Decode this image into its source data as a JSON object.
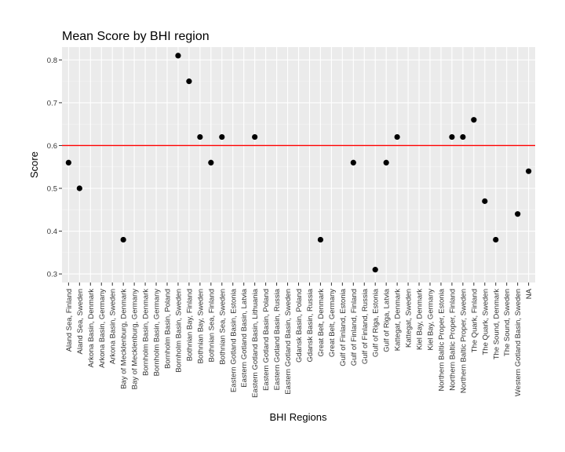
{
  "chart_data": {
    "type": "scatter",
    "title": "Mean Score by BHI region",
    "xlabel": "BHI Regions",
    "ylabel": "Score",
    "ylim": [
      0.28,
      0.83
    ],
    "yticks": [
      "0.3",
      "0.4",
      "0.5",
      "0.6",
      "0.7",
      "0.8"
    ],
    "grid": true,
    "reference_line": {
      "y": 0.6,
      "color": "#ff0000"
    },
    "categories": [
      "Aland Sea, Finland",
      "Aland Sea, Sweden",
      "Arkona Basin, Denmark",
      "Arkona Basin, Germany",
      "Arkona Basin, Sweden",
      "Bay of Mecklenburg, Denmark",
      "Bay of Mecklenburg, Germany",
      "Bornholm Basin, Denmark",
      "Bornholm Basin, Germany",
      "Bornholm Basin, Poland",
      "Bornholm Basin, Sweden",
      "Bothnian Bay, Finland",
      "Bothnian Bay, Sweden",
      "Bothnian Sea, Finland",
      "Bothnian Sea, Sweden",
      "Eastern Gotland Basin, Estonia",
      "Eastern Gotland Basin, Latvia",
      "Eastern Gotland Basin, Lithuania",
      "Eastern Gotland Basin, Poland",
      "Eastern Gotland Basin, Russia",
      "Eastern Gotland Basin, Sweden",
      "Gdansk Basin, Poland",
      "Gdansk Basin, Russia",
      "Great Belt, Denmark",
      "Great Belt, Germany",
      "Gulf of Finland, Estonia",
      "Gulf of Finland, Finland",
      "Gulf of Finland, Russia",
      "Gulf of Riga, Estonia",
      "Gulf of Riga, Latvia",
      "Kattegat, Denmark",
      "Kattegat, Sweden",
      "Kiel Bay, Denmark",
      "Kiel Bay, Germany",
      "Northern Baltic Proper, Estonia",
      "Northern Baltic Proper, Finland",
      "Northern Baltic Proper, Sweden",
      "The Quark, Finland",
      "The Quark, Sweden",
      "The Sound, Denmark",
      "The Sound, Sweden",
      "Western Gotland Basin, Sweden",
      "NA"
    ],
    "values": [
      0.56,
      0.5,
      null,
      null,
      null,
      0.38,
      null,
      null,
      null,
      null,
      0.81,
      0.75,
      0.62,
      0.56,
      0.62,
      null,
      null,
      0.62,
      null,
      null,
      null,
      null,
      null,
      0.38,
      null,
      null,
      0.56,
      null,
      0.31,
      0.56,
      0.62,
      null,
      null,
      null,
      null,
      0.62,
      0.62,
      0.66,
      0.47,
      0.38,
      null,
      0.44,
      0.54
    ],
    "colors": {
      "panel": "#ebebeb",
      "grid_major": "#ffffff",
      "grid_minor": "#f5f5f5",
      "point": "#000000",
      "reference": "#ff0000"
    }
  }
}
